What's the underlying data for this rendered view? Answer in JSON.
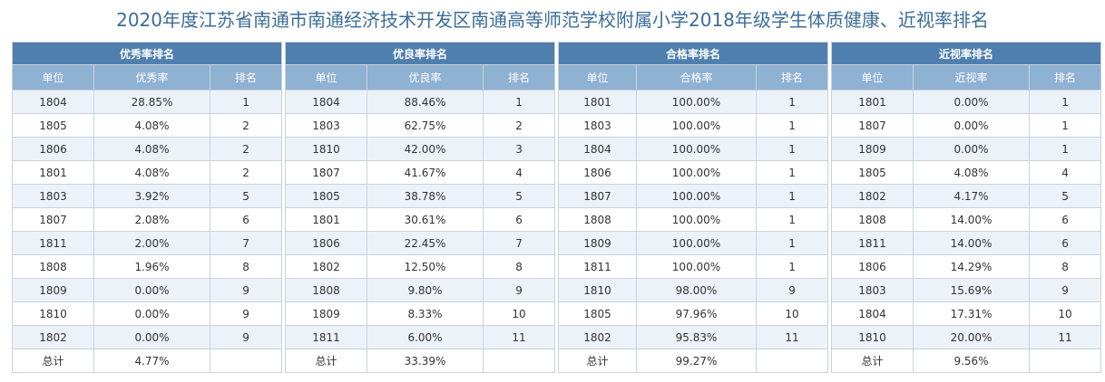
{
  "title": "2020年度江苏省南通市南通经济技术开发区南通高等师范学校附属小学2018年级学生体质健康、近视率排名",
  "tables": [
    {
      "group": "优秀率排名",
      "headers": [
        "单位",
        "优秀率",
        "排名"
      ],
      "rows": [
        [
          "1804",
          "28.85%",
          "1"
        ],
        [
          "1805",
          "4.08%",
          "2"
        ],
        [
          "1806",
          "4.08%",
          "2"
        ],
        [
          "1801",
          "4.08%",
          "2"
        ],
        [
          "1803",
          "3.92%",
          "5"
        ],
        [
          "1807",
          "2.08%",
          "6"
        ],
        [
          "1811",
          "2.00%",
          "7"
        ],
        [
          "1808",
          "1.96%",
          "8"
        ],
        [
          "1809",
          "0.00%",
          "9"
        ],
        [
          "1810",
          "0.00%",
          "9"
        ],
        [
          "1802",
          "0.00%",
          "9"
        ]
      ],
      "total": [
        "总计",
        "4.77%",
        ""
      ]
    },
    {
      "group": "优良率排名",
      "headers": [
        "单位",
        "优良率",
        "排名"
      ],
      "rows": [
        [
          "1804",
          "88.46%",
          "1"
        ],
        [
          "1803",
          "62.75%",
          "2"
        ],
        [
          "1810",
          "42.00%",
          "3"
        ],
        [
          "1807",
          "41.67%",
          "4"
        ],
        [
          "1805",
          "38.78%",
          "5"
        ],
        [
          "1801",
          "30.61%",
          "6"
        ],
        [
          "1806",
          "22.45%",
          "7"
        ],
        [
          "1802",
          "12.50%",
          "8"
        ],
        [
          "1808",
          "9.80%",
          "9"
        ],
        [
          "1809",
          "8.33%",
          "10"
        ],
        [
          "1811",
          "6.00%",
          "11"
        ]
      ],
      "total": [
        "总计",
        "33.39%",
        ""
      ]
    },
    {
      "group": "合格率排名",
      "headers": [
        "单位",
        "合格率",
        "排名"
      ],
      "rows": [
        [
          "1801",
          "100.00%",
          "1"
        ],
        [
          "1803",
          "100.00%",
          "1"
        ],
        [
          "1804",
          "100.00%",
          "1"
        ],
        [
          "1806",
          "100.00%",
          "1"
        ],
        [
          "1807",
          "100.00%",
          "1"
        ],
        [
          "1808",
          "100.00%",
          "1"
        ],
        [
          "1809",
          "100.00%",
          "1"
        ],
        [
          "1811",
          "100.00%",
          "1"
        ],
        [
          "1810",
          "98.00%",
          "9"
        ],
        [
          "1805",
          "97.96%",
          "10"
        ],
        [
          "1802",
          "95.83%",
          "11"
        ]
      ],
      "total": [
        "总计",
        "99.27%",
        ""
      ]
    },
    {
      "group": "近视率排名",
      "headers": [
        "单位",
        "近视率",
        "排名"
      ],
      "rows": [
        [
          "1801",
          "0.00%",
          "1"
        ],
        [
          "1807",
          "0.00%",
          "1"
        ],
        [
          "1809",
          "0.00%",
          "1"
        ],
        [
          "1805",
          "4.08%",
          "4"
        ],
        [
          "1802",
          "4.17%",
          "5"
        ],
        [
          "1808",
          "14.00%",
          "6"
        ],
        [
          "1811",
          "14.00%",
          "6"
        ],
        [
          "1806",
          "14.29%",
          "8"
        ],
        [
          "1803",
          "15.69%",
          "9"
        ],
        [
          "1804",
          "17.31%",
          "10"
        ],
        [
          "1810",
          "20.00%",
          "11"
        ]
      ],
      "total": [
        "总计",
        "9.56%",
        ""
      ]
    }
  ]
}
